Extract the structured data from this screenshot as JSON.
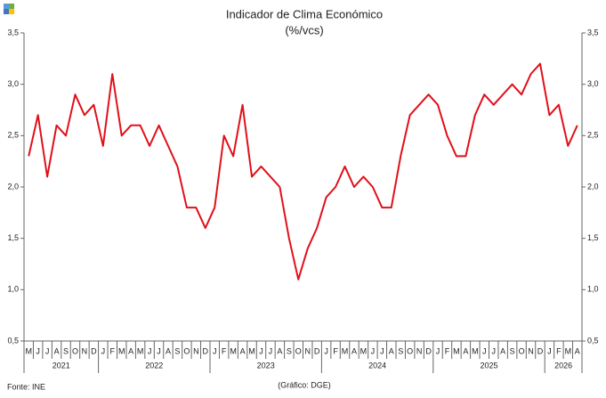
{
  "chart_data": {
    "type": "line",
    "title": "Indicador de Clima Económico",
    "subtitle": "(%/vcs)",
    "source": "Fonte:  INE",
    "credit": "(Gráfico:  DGE)",
    "categories": [
      "M",
      "J",
      "J",
      "A",
      "S",
      "O",
      "N",
      "D",
      "J",
      "F",
      "M",
      "A",
      "M",
      "J",
      "J",
      "A",
      "S",
      "O",
      "N",
      "D",
      "J",
      "F",
      "M",
      "A",
      "M",
      "J",
      "J",
      "A",
      "S",
      "O",
      "N",
      "D",
      "J",
      "F",
      "M",
      "A",
      "M",
      "J",
      "J",
      "A",
      "S",
      "O",
      "N",
      "D",
      "J",
      "F",
      "M",
      "A",
      "M",
      "J",
      "J",
      "A",
      "S",
      "O",
      "N",
      "D",
      "J",
      "F",
      "M",
      "A"
    ],
    "years": [
      "2021",
      "2022",
      "2023",
      "2024",
      "2025",
      "2026"
    ],
    "series": [
      {
        "name": "Indicador de Clima Económico",
        "color": "#e0101a",
        "values": [
          2.3,
          2.7,
          2.1,
          2.6,
          2.5,
          2.9,
          2.7,
          2.8,
          2.4,
          3.1,
          2.5,
          2.6,
          2.6,
          2.4,
          2.6,
          2.4,
          2.2,
          1.8,
          1.8,
          1.6,
          1.8,
          2.5,
          2.3,
          2.8,
          2.1,
          2.2,
          2.1,
          2.0,
          1.5,
          1.1,
          1.4,
          1.6,
          1.9,
          2.0,
          2.2,
          2.0,
          2.1,
          2.0,
          1.8,
          1.8,
          2.3,
          2.7,
          2.8,
          2.9,
          2.8,
          2.5,
          2.3,
          2.3,
          2.7,
          2.9,
          2.8,
          2.9,
          3.0,
          2.9,
          3.1,
          3.2,
          2.7,
          2.8,
          2.4,
          2.6
        ]
      }
    ],
    "ylim": [
      0.5,
      3.5
    ],
    "yticks": [
      {
        "value": 0.5,
        "label": "0,5"
      },
      {
        "value": 1.0,
        "label": "1,0"
      },
      {
        "value": 1.5,
        "label": "1,5"
      },
      {
        "value": 2.0,
        "label": "2,0"
      },
      {
        "value": 2.5,
        "label": "2,5"
      },
      {
        "value": 3.0,
        "label": "3,0"
      },
      {
        "value": 3.5,
        "label": "3,5"
      }
    ]
  }
}
